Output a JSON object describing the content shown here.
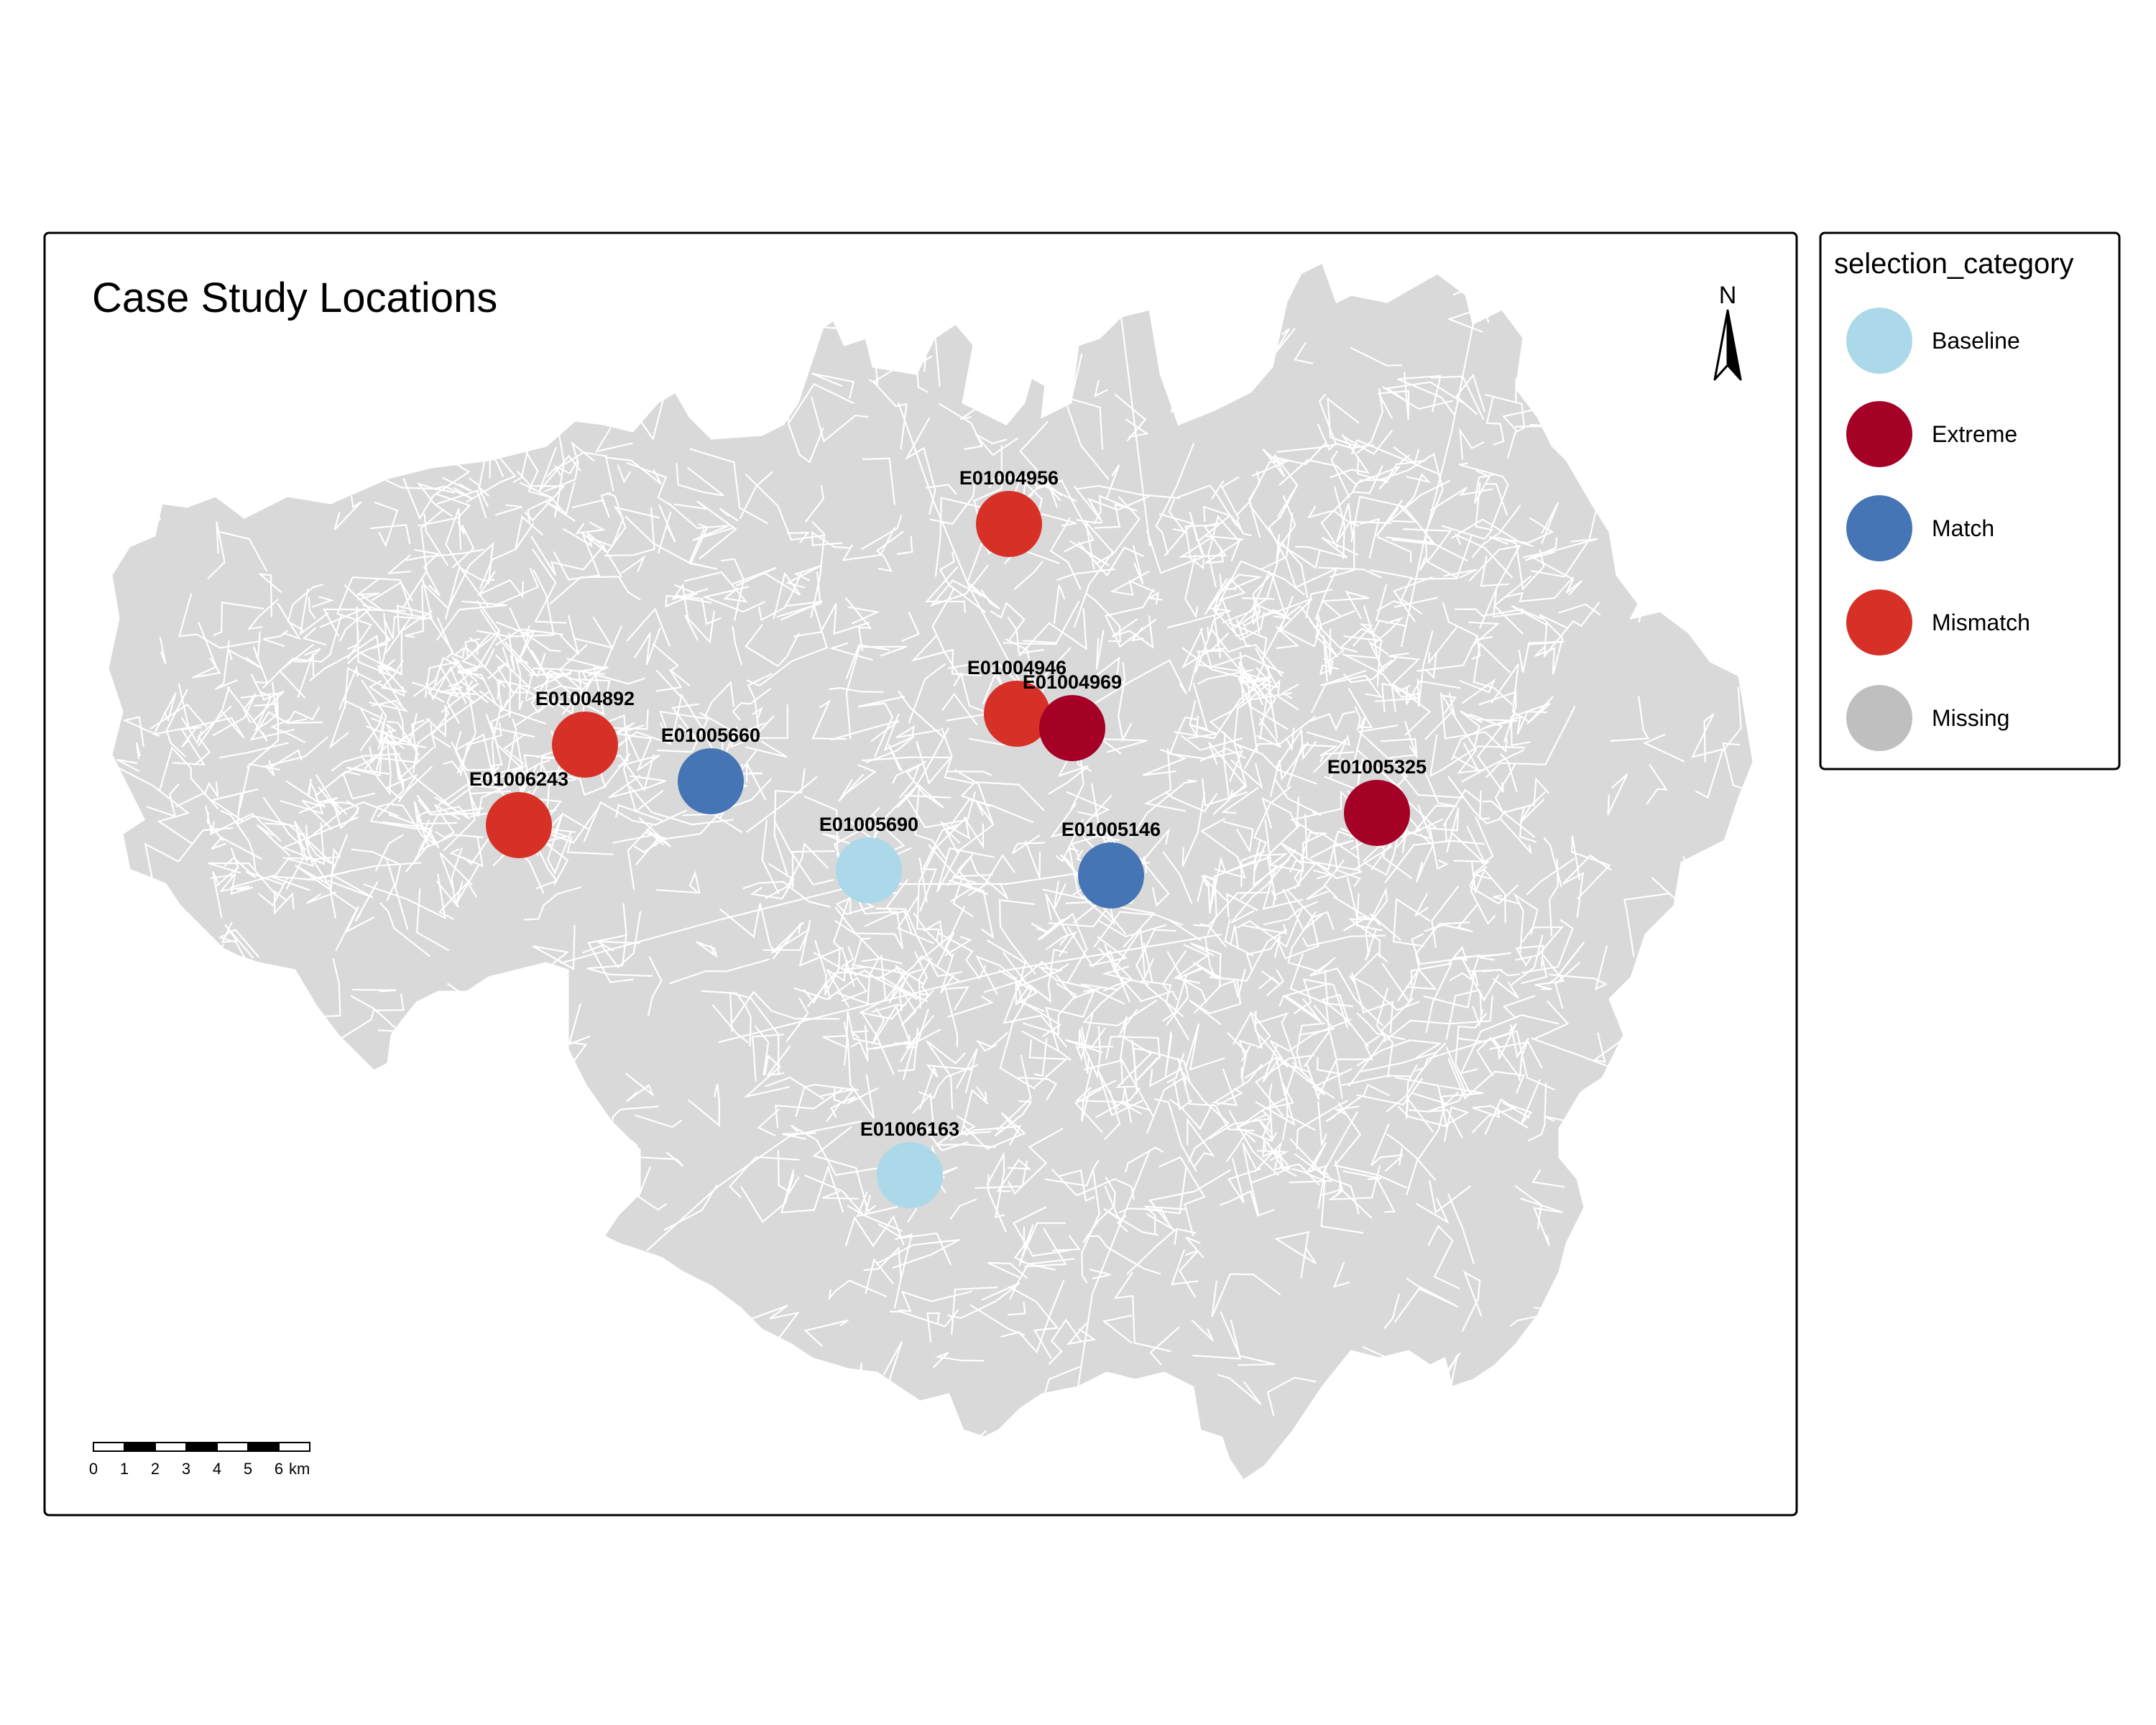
{
  "map": {
    "title": "Case Study Locations",
    "north_label": "N",
    "region_fill": "#d9d9d9",
    "boundary_color": "#ffffff"
  },
  "legend": {
    "title": "selection_category",
    "items": [
      {
        "label": "Baseline",
        "color": "#abd9e9"
      },
      {
        "label": "Extreme",
        "color": "#a50026"
      },
      {
        "label": "Match",
        "color": "#4575b4"
      },
      {
        "label": "Mismatch",
        "color": "#d73027"
      },
      {
        "label": "Missing",
        "color": "#bfbfbf"
      }
    ]
  },
  "scale_bar": {
    "ticks": [
      "0",
      "1",
      "2",
      "3",
      "4",
      "5",
      "6"
    ],
    "unit": "km"
  },
  "locations": [
    {
      "code": "E01004956",
      "category": "Mismatch"
    },
    {
      "code": "E01004946",
      "category": "Mismatch"
    },
    {
      "code": "E01004969",
      "category": "Extreme"
    },
    {
      "code": "E01004892",
      "category": "Mismatch"
    },
    {
      "code": "E01005660",
      "category": "Match"
    },
    {
      "code": "E01006243",
      "category": "Mismatch"
    },
    {
      "code": "E01005690",
      "category": "Baseline"
    },
    {
      "code": "E01005146",
      "category": "Match"
    },
    {
      "code": "E01005325",
      "category": "Extreme"
    },
    {
      "code": "E01006163",
      "category": "Baseline"
    }
  ]
}
